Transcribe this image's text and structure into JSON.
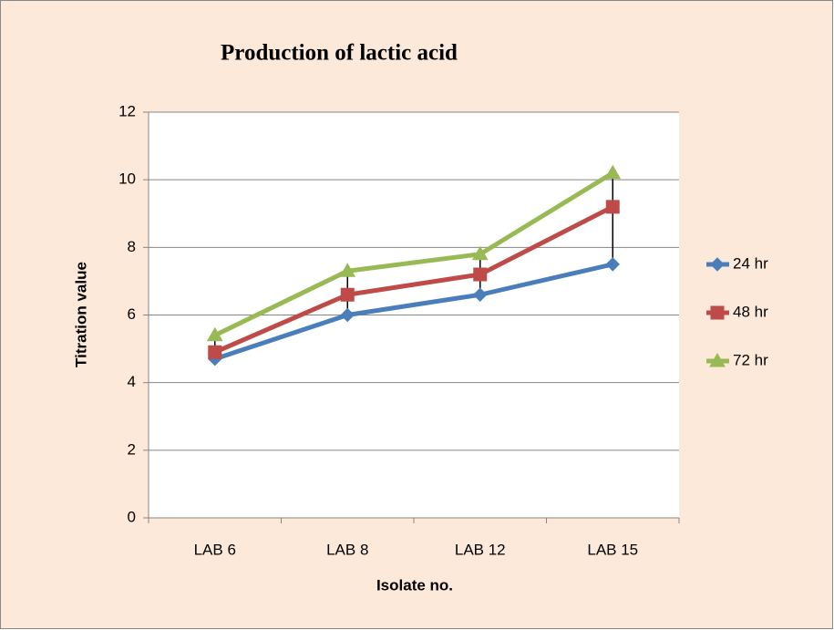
{
  "chart_data": {
    "type": "line",
    "title": "Production of lactic acid",
    "x_label": "Isolate no.",
    "y_label": "Titration value",
    "categories": [
      "LAB 6",
      "LAB 8",
      "LAB 12",
      "LAB 15"
    ],
    "series": [
      {
        "name": "24 hr",
        "color": "#4a7ebb",
        "marker": "diamond",
        "values": [
          4.7,
          6.0,
          6.6,
          7.5
        ]
      },
      {
        "name": "48 hr",
        "color": "#be4b48",
        "marker": "square",
        "values": [
          4.9,
          6.6,
          7.2,
          9.2
        ]
      },
      {
        "name": "72 hr",
        "color": "#98b954",
        "marker": "triangle",
        "values": [
          5.4,
          7.3,
          7.8,
          10.2
        ]
      }
    ],
    "ylim": [
      0,
      12
    ],
    "yticks": [
      0,
      2,
      4,
      6,
      8,
      10,
      12
    ],
    "grid": true,
    "high_low_lines": true,
    "legend": "right"
  }
}
